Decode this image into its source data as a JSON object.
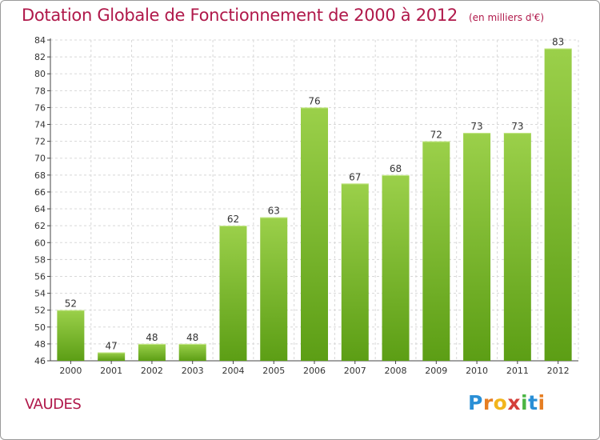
{
  "title": "Dotation Globale de Fonctionnement de 2000 à 2012",
  "unit_note": "(en milliers d'€)",
  "commune": "VAUDES",
  "brand": {
    "letters": [
      "P",
      "r",
      "o",
      "x",
      "i",
      "t",
      "i"
    ],
    "colors": [
      "#2a8fd6",
      "#e67e22",
      "#f2b51c",
      "#d43f3a",
      "#4bb543",
      "#2a8fd6",
      "#e67e22"
    ]
  },
  "colors": {
    "title": "#b0184a",
    "bar_light": "#9bd04a",
    "bar_dark": "#5c9e15",
    "grid": "#d8d8d8"
  },
  "chart_data": {
    "type": "bar",
    "title": "Dotation Globale de Fonctionnement de 2000 à 2012",
    "subtitle": "(en milliers d'€)",
    "categories": [
      "2000",
      "2001",
      "2002",
      "2003",
      "2004",
      "2005",
      "2006",
      "2007",
      "2008",
      "2009",
      "2010",
      "2011",
      "2012"
    ],
    "values": [
      52,
      47,
      48,
      48,
      62,
      63,
      76,
      67,
      68,
      72,
      73,
      73,
      83
    ],
    "ylim": [
      46,
      84
    ],
    "yticks": [
      46,
      48,
      50,
      52,
      54,
      56,
      58,
      60,
      62,
      64,
      66,
      68,
      70,
      72,
      74,
      76,
      78,
      80,
      82,
      84
    ],
    "xlabel": "",
    "ylabel": "",
    "grid": true
  }
}
